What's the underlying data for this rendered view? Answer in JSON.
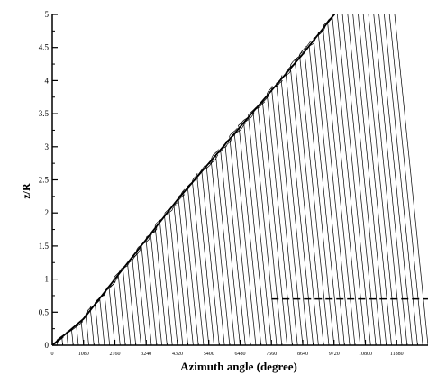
{
  "chart_data": {
    "type": "line",
    "title": "",
    "xlabel": "Azimuth angle (degree)",
    "ylabel": "z/R",
    "xlim": [
      0,
      12960
    ],
    "ylim": [
      0,
      5
    ],
    "x_ticks": [
      0,
      1080,
      2160,
      3240,
      4320,
      5400,
      6480,
      7560,
      8640,
      9720,
      10800,
      11880
    ],
    "x_tick_labels": [
      "0",
      "1080",
      "2160",
      "3240",
      "4320",
      "5400",
      "6480",
      "7560",
      "8640",
      "9720",
      "10800",
      "11880"
    ],
    "y_ticks": [
      0,
      0.5,
      1,
      1.5,
      2,
      2.5,
      3,
      3.5,
      4,
      4.5,
      5
    ],
    "y_tick_labels": [
      "0",
      "0.5",
      "1",
      "1.5",
      "2",
      "2.5",
      "3",
      "3.5",
      "4",
      "4.5",
      "5"
    ],
    "grid": false,
    "legend": "none",
    "envelope": {
      "x": [
        0,
        1080,
        2160,
        3240,
        4320,
        5400,
        6480,
        7560,
        8640,
        9720
      ],
      "y": [
        0.0,
        0.4,
        1.0,
        1.6,
        2.2,
        2.75,
        3.3,
        3.85,
        4.4,
        5.0
      ]
    },
    "dashed_line": {
      "y": 0.7,
      "x_start": 7560,
      "x_end": 12960
    },
    "vortex_line_spacing": 180,
    "vortex_line_drift": -0.011,
    "colors": {
      "line": "#000000",
      "background": "#ffffff"
    }
  }
}
